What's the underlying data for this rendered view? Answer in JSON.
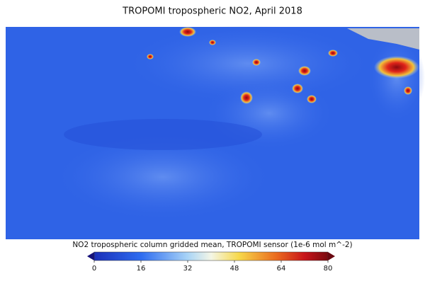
{
  "title": "TROPOMI tropospheric NO2, April 2018",
  "colorbar": {
    "label": "NO2 tropospheric column gridded mean, TROPOMI sensor (1e-6 mol m^-2)",
    "range": [
      0,
      80
    ],
    "ticks": [
      0,
      16,
      32,
      48,
      64,
      80
    ]
  }
}
